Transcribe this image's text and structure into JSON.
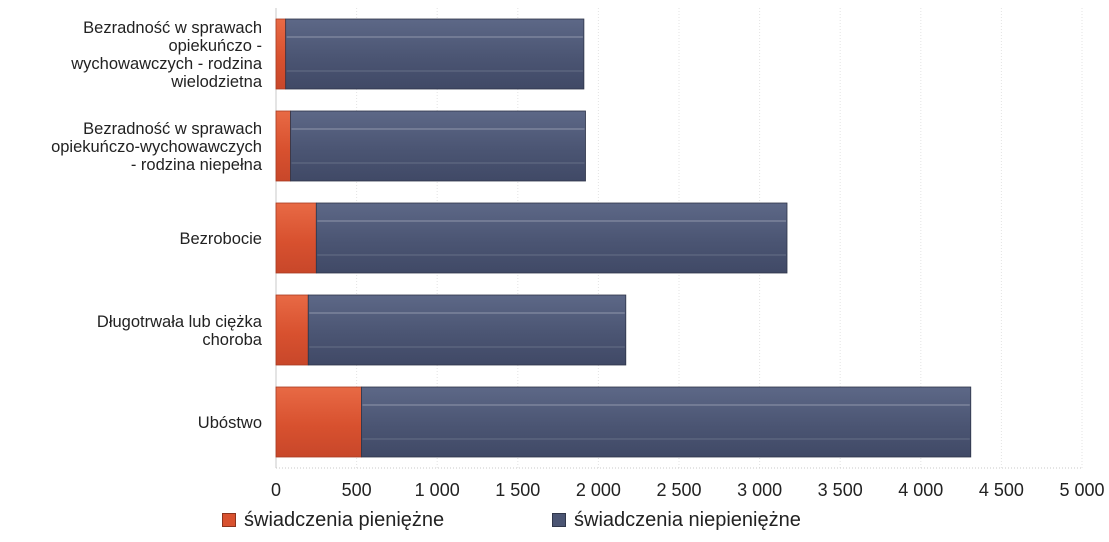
{
  "chart_data": {
    "type": "bar",
    "orientation": "horizontal",
    "stacked": true,
    "categories": [
      "Bezradność w sprawach opiekuńczo - wychowawczych - rodzina wielodzietna",
      "Bezradność w sprawach opiekuńczo-wychowawczych - rodzina niepełna",
      "Bezrobocie",
      "Długotrwała lub ciężka choroba",
      "Ubóstwo"
    ],
    "category_lines": [
      [
        "Bezradność w sprawach",
        "opiekuńczo -",
        "wychowawczych - rodzina",
        "wielodzietna"
      ],
      [
        "Bezradność w sprawach",
        "opiekuńczo-wychowawczych",
        "- rodzina niepełna"
      ],
      [
        "Bezrobocie"
      ],
      [
        "Długotrwała lub ciężka",
        "choroba"
      ],
      [
        "Ubóstwo"
      ]
    ],
    "series": [
      {
        "name": "świadczenia pieniężne",
        "color": "#e05a36",
        "values": [
          60,
          90,
          250,
          200,
          530
        ]
      },
      {
        "name": "świadczenia niepieniężne",
        "color": "#4f5a78",
        "values": [
          1850,
          1830,
          2920,
          1970,
          3780
        ]
      }
    ],
    "xlim": [
      0,
      5000
    ],
    "xticks": [
      0,
      500,
      1000,
      1500,
      2000,
      2500,
      3000,
      3500,
      4000,
      4500,
      5000
    ],
    "xtick_labels": [
      "0",
      "500",
      "1 000",
      "1 500",
      "2 000",
      "2 500",
      "3 000",
      "3 500",
      "4 000",
      "4 500",
      "5 000"
    ],
    "grid": true,
    "legend_position": "bottom",
    "title": "",
    "xlabel": "",
    "ylabel": ""
  }
}
